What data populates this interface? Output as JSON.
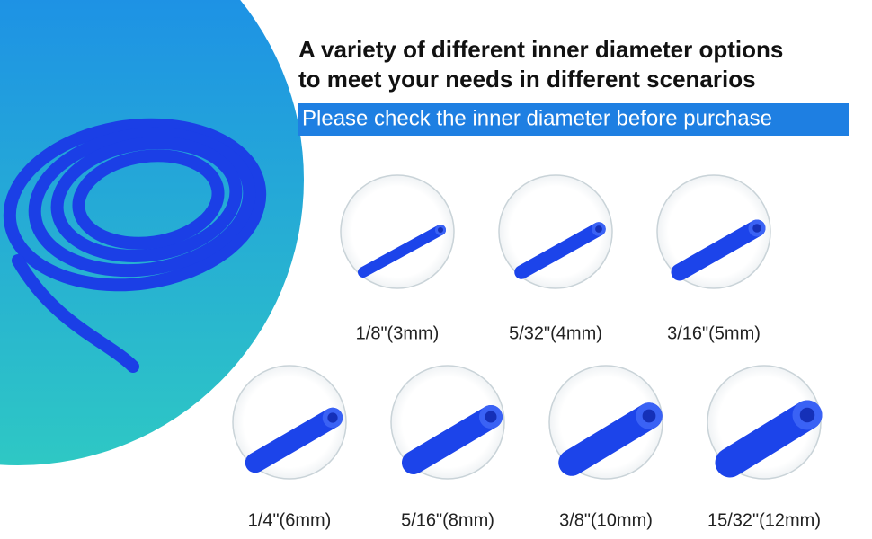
{
  "heading": {
    "line1": "A variety of different inner diameter options",
    "line2": "to meet your needs in different scenarios",
    "banner": "Please check the inner diameter before purchase"
  },
  "options": [
    {
      "label": "1/8\"(3mm)"
    },
    {
      "label": "5/32\"(4mm)"
    },
    {
      "label": "3/16\"(5mm)"
    },
    {
      "label": "1/4\"(6mm)"
    },
    {
      "label": "5/16\"(8mm)"
    },
    {
      "label": "3/8\"(10mm)"
    },
    {
      "label": "15/32\"(12mm)"
    }
  ]
}
